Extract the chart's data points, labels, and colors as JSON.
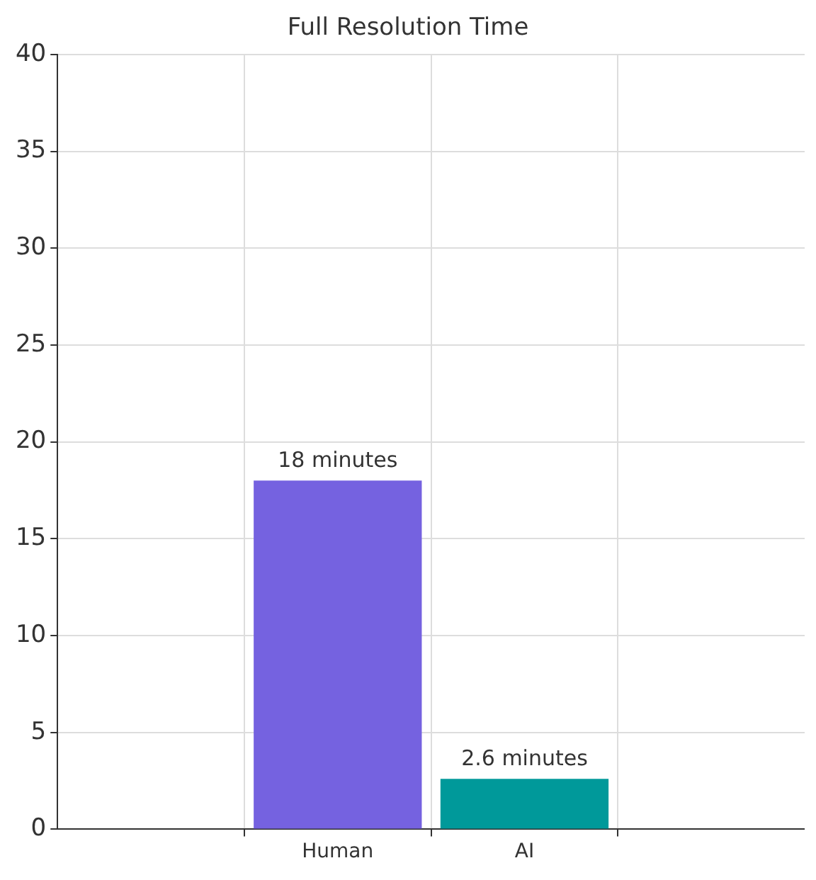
{
  "chart_data": {
    "type": "bar",
    "title": "Full Resolution Time",
    "categories": [
      "Human",
      "AI"
    ],
    "values": [
      18,
      2.6
    ],
    "colors": [
      "#7562e0",
      "#00999a"
    ],
    "value_labels": [
      "18 minutes",
      "2.6 minutes"
    ],
    "ylim": [
      0,
      40
    ],
    "yticks": [
      0,
      5,
      10,
      15,
      20,
      25,
      30,
      35,
      40
    ],
    "grid": true
  }
}
